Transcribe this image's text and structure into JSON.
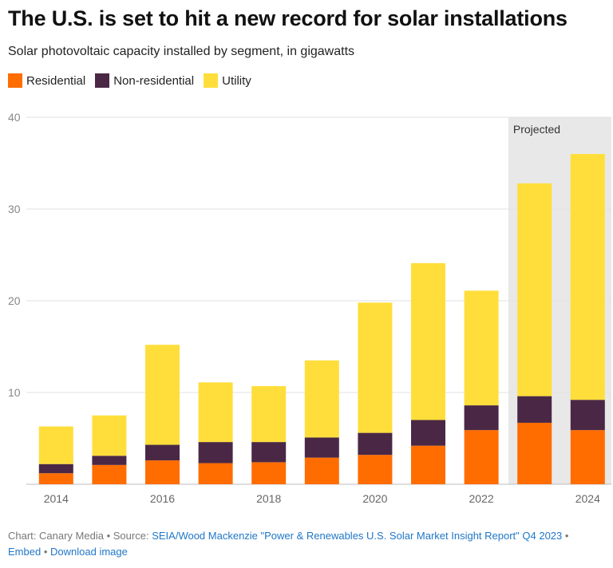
{
  "header": {
    "title": "The U.S. is set to hit a new record for solar installations",
    "subtitle": "Solar photovoltaic capacity installed by segment, in gigawatts"
  },
  "chart_data": {
    "type": "bar",
    "stacked": true,
    "categories": [
      "2014",
      "2015",
      "2016",
      "2017",
      "2018",
      "2019",
      "2020",
      "2021",
      "2022",
      "2023",
      "2024"
    ],
    "x_tick_labels": [
      "2014",
      "2016",
      "2018",
      "2020",
      "2022",
      "2024"
    ],
    "ylim": [
      0,
      40
    ],
    "y_ticks": [
      0,
      10,
      20,
      30,
      40
    ],
    "y_tick_labels": [
      "",
      "10",
      "20",
      "30",
      "40"
    ],
    "grid": true,
    "legend_position": "top-left",
    "series": [
      {
        "name": "Residential",
        "color": "#ff6d00",
        "values": [
          1.2,
          2.1,
          2.6,
          2.3,
          2.4,
          2.9,
          3.2,
          4.2,
          5.9,
          6.7,
          5.9
        ]
      },
      {
        "name": "Non-residential",
        "color": "#4a2845",
        "values": [
          1.0,
          1.0,
          1.7,
          2.3,
          2.2,
          2.2,
          2.4,
          2.8,
          2.7,
          2.9,
          3.3
        ]
      },
      {
        "name": "Utility",
        "color": "#ffde3b",
        "values": [
          4.1,
          4.4,
          10.9,
          6.5,
          6.1,
          8.4,
          14.2,
          17.1,
          12.5,
          23.2,
          26.8
        ]
      }
    ],
    "projected": {
      "label": "Projected",
      "categories": [
        "2023",
        "2024"
      ],
      "shade_color": "#e8e8e8"
    }
  },
  "footer": {
    "chart_by": "Chart: Canary Media",
    "source_prefix": "Source:",
    "source_link": "SEIA/Wood Mackenzie \"Power & Renewables U.S. Solar Market Insight Report\" Q4 2023",
    "embed": "Embed",
    "download": "Download image",
    "separator": "•"
  }
}
